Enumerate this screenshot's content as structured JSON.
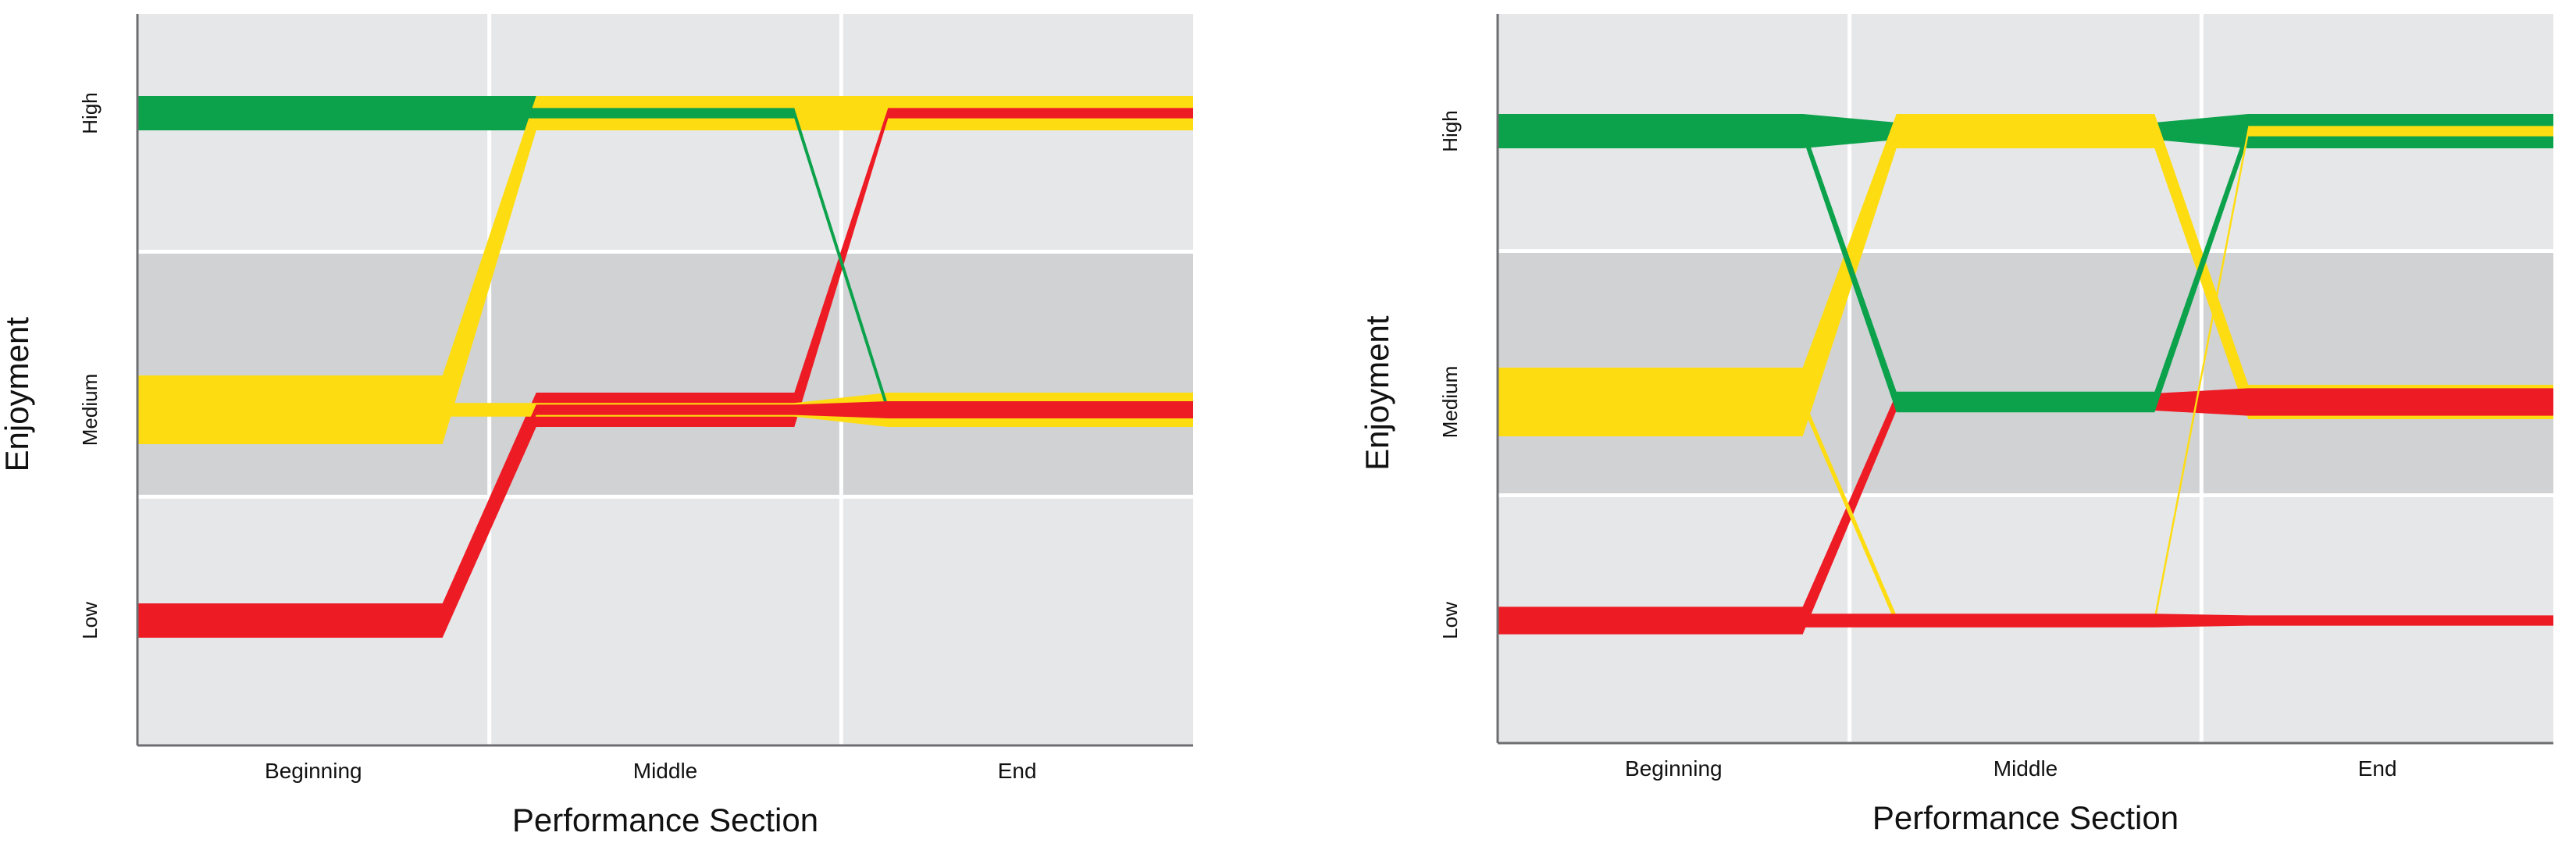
{
  "chart_data": [
    {
      "type": "line",
      "xlabel": "Performance Section",
      "ylabel": "Enjoyment",
      "categories": [
        "Beginning",
        "Middle",
        "End"
      ],
      "y_levels": [
        "Low",
        "Medium",
        "High"
      ],
      "grid": true,
      "series": [
        {
          "color": "#0ca24b",
          "values": [
            "High",
            "High",
            "High"
          ],
          "thickness": [
            1,
            1,
            1
          ]
        },
        {
          "color": "#fedc12",
          "values": [
            "Medium",
            "High",
            "High"
          ],
          "thickness": [
            2,
            1,
            1
          ]
        },
        {
          "color": "#ed1c24",
          "values": [
            "Low",
            "Medium",
            "High"
          ],
          "thickness": [
            1,
            1,
            0.3
          ]
        },
        {
          "color": "#fedc12",
          "values": [
            "Medium",
            "Medium",
            "Medium"
          ],
          "thickness": [
            0.4,
            0.4,
            1
          ]
        },
        {
          "color": "#0ca24b",
          "values": [
            "High",
            "High",
            "Medium"
          ],
          "thickness": [
            0.3,
            0.3,
            0.3
          ]
        },
        {
          "color": "#ed1c24",
          "values": [
            "Low",
            "Medium",
            "Medium"
          ],
          "thickness": [
            0.3,
            0.3,
            0.5
          ]
        }
      ]
    },
    {
      "type": "line",
      "xlabel": "Performance Section",
      "ylabel": "Enjoyment",
      "categories": [
        "Beginning",
        "Middle",
        "End"
      ],
      "y_levels": [
        "Low",
        "Medium",
        "High"
      ],
      "grid": true,
      "series": [
        {
          "color": "#0ca24b",
          "values": [
            "High",
            "High",
            "High"
          ],
          "thickness": [
            1,
            0.5,
            1
          ]
        },
        {
          "color": "#fedc12",
          "values": [
            "Medium",
            "High",
            "Medium"
          ],
          "thickness": [
            2,
            1,
            1
          ]
        },
        {
          "color": "#ed1c24",
          "values": [
            "Low",
            "Medium",
            "Medium"
          ],
          "thickness": [
            0.8,
            0.5,
            0.8
          ]
        },
        {
          "color": "#0ca24b",
          "values": [
            "High",
            "Medium",
            "High"
          ],
          "thickness": [
            0.4,
            0.6,
            0.4
          ]
        },
        {
          "color": "#fedc12",
          "values": [
            "Medium",
            "Low",
            "High"
          ],
          "thickness": [
            0.3,
            0.3,
            0.3
          ]
        },
        {
          "color": "#ed1c24",
          "values": [
            "Low",
            "Low",
            "Low"
          ],
          "thickness": [
            0.4,
            0.4,
            0.3
          ]
        }
      ]
    }
  ]
}
